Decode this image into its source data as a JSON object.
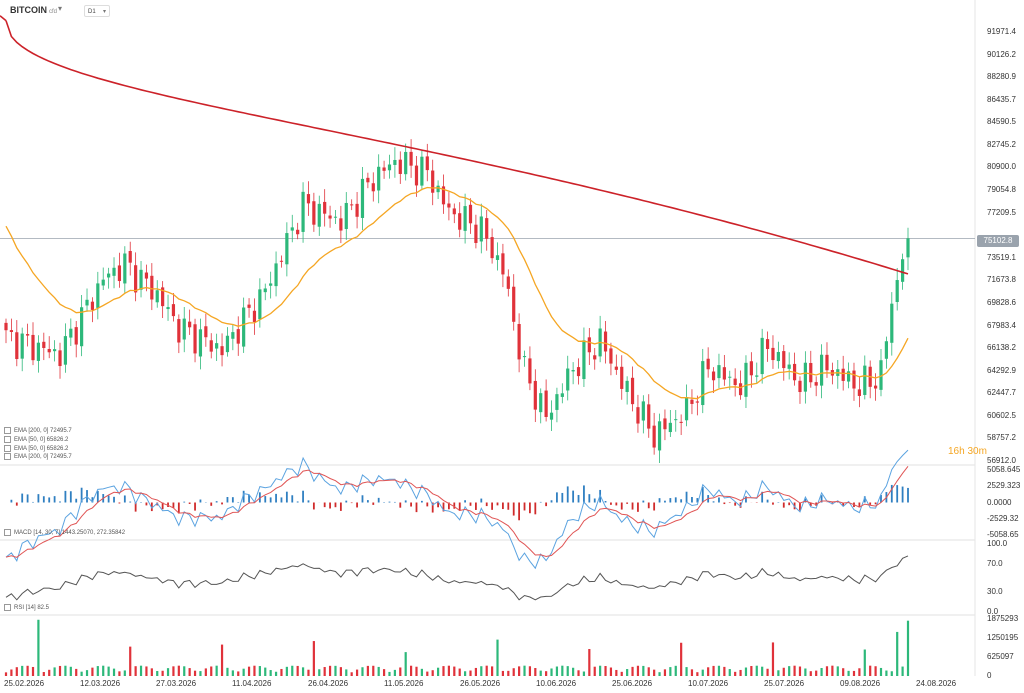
{
  "header": {
    "symbol": "BITCOIN",
    "symbol_sub": "cfd",
    "timeframe": "D1"
  },
  "legends": {
    "main": [
      "EMA [200, 0] 72495.7",
      "EMA [50, 0] 65826.2",
      "EMA [50, 0] 65826.2",
      "EMA [200, 0] 72495.7"
    ],
    "macd": "MACD [14, 30, 7] 1443.25070, 272.35842",
    "rsi": "RSI [14] 82.5"
  },
  "countdown": "16h 30m",
  "current_price": "75102.8",
  "colors": {
    "up": "#2db87a",
    "down": "#e0323a",
    "ema200": "#cc2229",
    "ema50": "#f5a623",
    "macd_line": "#5ba3e0",
    "signal_line": "#e05555",
    "hist_pos": "#2f7fc1",
    "hist_neg": "#d02b2b",
    "rsi_line": "#555555",
    "price_line": "#9aa3ad"
  },
  "axes": {
    "price_ticks": [
      "91971.4",
      "90126.2",
      "88280.9",
      "86435.7",
      "84590.5",
      "82745.2",
      "80900.0",
      "79054.8",
      "77209.5",
      "73519.1",
      "71673.8",
      "69828.6",
      "67983.4",
      "66138.2",
      "64292.9",
      "62447.7",
      "60602.5",
      "58757.2",
      "56912.0"
    ],
    "macd_ticks": [
      "5058.645",
      "2529.323",
      "0.0000",
      "-2529.32",
      "-5058.65"
    ],
    "rsi_ticks": [
      "100.0",
      "70.0",
      "30.0",
      "0.0"
    ],
    "volume_ticks": [
      "1875293",
      "1250195",
      "625097",
      "0"
    ],
    "dates": [
      "25.02.2026",
      "12.03.2026",
      "27.03.2026",
      "11.04.2026",
      "26.04.2026",
      "11.05.2026",
      "26.05.2026",
      "10.06.2026",
      "25.06.2026",
      "10.07.2026",
      "25.07.2026",
      "09.08.2026",
      "24.08.2026"
    ]
  },
  "chart_data": {
    "type": "candlestick",
    "title": "BITCOIN",
    "timeframe": "D1",
    "candle_count": 168,
    "indicators": {
      "ema200_last": 72495.7,
      "ema50_last": 65826.2,
      "macd_last": [
        1443.2507,
        272.35842
      ],
      "rsi_last": 82.5
    },
    "close_anchors": [
      [
        0,
        67000
      ],
      [
        10,
        65600
      ],
      [
        18,
        71800
      ],
      [
        22,
        73000
      ],
      [
        28,
        70500
      ],
      [
        32,
        67800
      ],
      [
        40,
        66000
      ],
      [
        48,
        70800
      ],
      [
        55,
        77800
      ],
      [
        62,
        76500
      ],
      [
        68,
        80000
      ],
      [
        72,
        81400
      ],
      [
        78,
        80500
      ],
      [
        82,
        77300
      ],
      [
        88,
        75800
      ],
      [
        92,
        72500
      ],
      [
        96,
        64200
      ],
      [
        100,
        60500
      ],
      [
        105,
        64500
      ],
      [
        110,
        66800
      ],
      [
        115,
        62500
      ],
      [
        120,
        59000
      ],
      [
        126,
        61000
      ],
      [
        130,
        64600
      ],
      [
        136,
        63000
      ],
      [
        141,
        66300
      ],
      [
        147,
        63300
      ],
      [
        152,
        64600
      ],
      [
        158,
        63000
      ],
      [
        162,
        64000
      ],
      [
        164,
        70000
      ],
      [
        167,
        75102.8
      ]
    ]
  }
}
